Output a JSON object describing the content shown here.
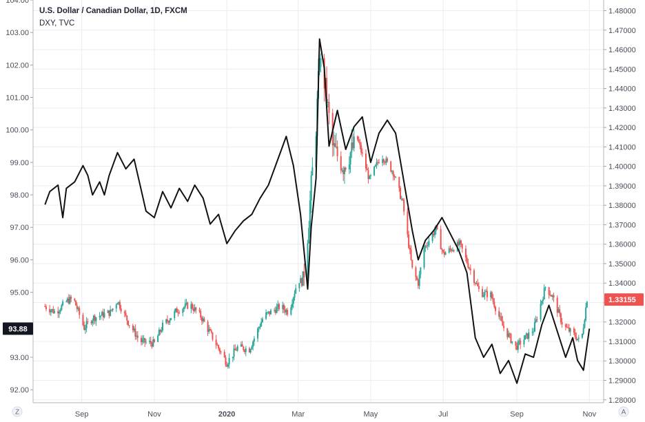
{
  "chart_data": {
    "type": "candlestick-with-line",
    "title": "U.S. Dollar / Canadian Dollar, 1D, FXCM",
    "overlay_label": "DXY, TVC",
    "x_ticks": [
      "Sep",
      "Nov",
      "2020",
      "Mar",
      "May",
      "Jul",
      "Sep",
      "Nov"
    ],
    "left_axis": {
      "series": "DXY",
      "range": [
        91.6,
        104.0
      ],
      "ticks": [
        "104.00",
        "103.00",
        "102.00",
        "101.00",
        "100.00",
        "99.00",
        "98.00",
        "97.00",
        "96.00",
        "95.00",
        "94.00",
        "93.00",
        "92.00"
      ],
      "last_value_label": "93.88"
    },
    "right_axis": {
      "series": "USDCAD",
      "range": [
        1.2785,
        1.4855
      ],
      "ticks": [
        "1.48000",
        "1.47000",
        "1.46000",
        "1.45000",
        "1.44000",
        "1.43000",
        "1.42000",
        "1.41000",
        "1.40000",
        "1.39000",
        "1.38000",
        "1.37000",
        "1.36000",
        "1.35000",
        "1.34000",
        "1.33000",
        "1.32000",
        "1.31000",
        "1.30000",
        "1.29000",
        "1.28000"
      ],
      "last_value_label": "1.33155"
    },
    "grid": true,
    "colors": {
      "up": "#26a69a",
      "down": "#ef5350",
      "line": "#111111",
      "grid": "#e9ecf1",
      "last_badge_left": "#131722",
      "last_badge_right": "#ef5350"
    },
    "usdcad_path": [
      {
        "date": "2019-08-01",
        "value": 1.328
      },
      {
        "date": "2019-08-10",
        "value": 1.325
      },
      {
        "date": "2019-08-20",
        "value": 1.331
      },
      {
        "date": "2019-08-25",
        "value": 1.332
      },
      {
        "date": "2019-09-03",
        "value": 1.317
      },
      {
        "date": "2019-09-10",
        "value": 1.322
      },
      {
        "date": "2019-09-25",
        "value": 1.325
      },
      {
        "date": "2019-10-01",
        "value": 1.331
      },
      {
        "date": "2019-10-10",
        "value": 1.32
      },
      {
        "date": "2019-10-20",
        "value": 1.31
      },
      {
        "date": "2019-11-01",
        "value": 1.309
      },
      {
        "date": "2019-11-08",
        "value": 1.318
      },
      {
        "date": "2019-11-20",
        "value": 1.326
      },
      {
        "date": "2019-12-01",
        "value": 1.329
      },
      {
        "date": "2019-12-10",
        "value": 1.323
      },
      {
        "date": "2019-12-20",
        "value": 1.312
      },
      {
        "date": "2020-01-01",
        "value": 1.299
      },
      {
        "date": "2020-01-10",
        "value": 1.307
      },
      {
        "date": "2020-01-20",
        "value": 1.306
      },
      {
        "date": "2020-02-01",
        "value": 1.323
      },
      {
        "date": "2020-02-15",
        "value": 1.328
      },
      {
        "date": "2020-02-22",
        "value": 1.325
      },
      {
        "date": "2020-03-01",
        "value": 1.342
      },
      {
        "date": "2020-03-05",
        "value": 1.34
      },
      {
        "date": "2020-03-09",
        "value": 1.365
      },
      {
        "date": "2020-03-12",
        "value": 1.39
      },
      {
        "date": "2020-03-16",
        "value": 1.42
      },
      {
        "date": "2020-03-19",
        "value": 1.455
      },
      {
        "date": "2020-03-24",
        "value": 1.44
      },
      {
        "date": "2020-03-30",
        "value": 1.41
      },
      {
        "date": "2020-04-08",
        "value": 1.4
      },
      {
        "date": "2020-04-20",
        "value": 1.414
      },
      {
        "date": "2020-04-30",
        "value": 1.393
      },
      {
        "date": "2020-05-10",
        "value": 1.406
      },
      {
        "date": "2020-05-20",
        "value": 1.397
      },
      {
        "date": "2020-05-28",
        "value": 1.381
      },
      {
        "date": "2020-06-05",
        "value": 1.347
      },
      {
        "date": "2020-06-10",
        "value": 1.34
      },
      {
        "date": "2020-06-15",
        "value": 1.358
      },
      {
        "date": "2020-06-25",
        "value": 1.368
      },
      {
        "date": "2020-07-01",
        "value": 1.355
      },
      {
        "date": "2020-07-15",
        "value": 1.36
      },
      {
        "date": "2020-07-25",
        "value": 1.345
      },
      {
        "date": "2020-08-01",
        "value": 1.335
      },
      {
        "date": "2020-08-10",
        "value": 1.334
      },
      {
        "date": "2020-08-20",
        "value": 1.318
      },
      {
        "date": "2020-08-31",
        "value": 1.307
      },
      {
        "date": "2020-09-05",
        "value": 1.31
      },
      {
        "date": "2020-09-15",
        "value": 1.316
      },
      {
        "date": "2020-09-25",
        "value": 1.338
      },
      {
        "date": "2020-10-01",
        "value": 1.333
      },
      {
        "date": "2020-10-10",
        "value": 1.318
      },
      {
        "date": "2020-10-20",
        "value": 1.313
      },
      {
        "date": "2020-10-25",
        "value": 1.309
      },
      {
        "date": "2020-10-30",
        "value": 1.332
      },
      {
        "date": "2020-11-01",
        "value": 1.3315
      }
    ],
    "dxy_line": [
      {
        "date": "2019-08-01",
        "value": 97.7
      },
      {
        "date": "2019-08-05",
        "value": 98.1
      },
      {
        "date": "2019-08-12",
        "value": 98.3
      },
      {
        "date": "2019-08-16",
        "value": 97.3
      },
      {
        "date": "2019-08-19",
        "value": 98.2
      },
      {
        "date": "2019-08-26",
        "value": 98.4
      },
      {
        "date": "2019-09-02",
        "value": 98.9
      },
      {
        "date": "2019-09-06",
        "value": 98.6
      },
      {
        "date": "2019-09-10",
        "value": 98.0
      },
      {
        "date": "2019-09-16",
        "value": 98.4
      },
      {
        "date": "2019-09-20",
        "value": 98.0
      },
      {
        "date": "2019-09-24",
        "value": 98.6
      },
      {
        "date": "2019-10-01",
        "value": 99.3
      },
      {
        "date": "2019-10-08",
        "value": 98.8
      },
      {
        "date": "2019-10-15",
        "value": 99.1
      },
      {
        "date": "2019-10-20",
        "value": 98.3
      },
      {
        "date": "2019-10-25",
        "value": 97.5
      },
      {
        "date": "2019-11-01",
        "value": 97.3
      },
      {
        "date": "2019-11-08",
        "value": 98.1
      },
      {
        "date": "2019-11-15",
        "value": 97.6
      },
      {
        "date": "2019-11-22",
        "value": 98.2
      },
      {
        "date": "2019-11-29",
        "value": 97.8
      },
      {
        "date": "2019-12-05",
        "value": 98.3
      },
      {
        "date": "2019-12-12",
        "value": 97.9
      },
      {
        "date": "2019-12-18",
        "value": 97.1
      },
      {
        "date": "2019-12-25",
        "value": 97.4
      },
      {
        "date": "2020-01-01",
        "value": 96.5
      },
      {
        "date": "2020-01-08",
        "value": 96.9
      },
      {
        "date": "2020-01-15",
        "value": 97.2
      },
      {
        "date": "2020-01-22",
        "value": 97.4
      },
      {
        "date": "2020-01-29",
        "value": 97.9
      },
      {
        "date": "2020-02-05",
        "value": 98.3
      },
      {
        "date": "2020-02-12",
        "value": 99.0
      },
      {
        "date": "2020-02-20",
        "value": 99.8
      },
      {
        "date": "2020-02-26",
        "value": 98.9
      },
      {
        "date": "2020-03-03",
        "value": 97.4
      },
      {
        "date": "2020-03-09",
        "value": 95.1
      },
      {
        "date": "2020-03-12",
        "value": 97.0
      },
      {
        "date": "2020-03-16",
        "value": 98.5
      },
      {
        "date": "2020-03-19",
        "value": 102.8
      },
      {
        "date": "2020-03-23",
        "value": 101.9
      },
      {
        "date": "2020-03-27",
        "value": 99.5
      },
      {
        "date": "2020-04-03",
        "value": 100.6
      },
      {
        "date": "2020-04-10",
        "value": 99.4
      },
      {
        "date": "2020-04-17",
        "value": 100.1
      },
      {
        "date": "2020-04-24",
        "value": 100.4
      },
      {
        "date": "2020-05-01",
        "value": 99.0
      },
      {
        "date": "2020-05-08",
        "value": 99.9
      },
      {
        "date": "2020-05-15",
        "value": 100.3
      },
      {
        "date": "2020-05-22",
        "value": 99.9
      },
      {
        "date": "2020-05-29",
        "value": 98.4
      },
      {
        "date": "2020-06-05",
        "value": 96.9
      },
      {
        "date": "2020-06-10",
        "value": 96.0
      },
      {
        "date": "2020-06-16",
        "value": 96.6
      },
      {
        "date": "2020-06-23",
        "value": 96.9
      },
      {
        "date": "2020-06-30",
        "value": 97.3
      },
      {
        "date": "2020-07-07",
        "value": 96.8
      },
      {
        "date": "2020-07-14",
        "value": 96.3
      },
      {
        "date": "2020-07-21",
        "value": 95.6
      },
      {
        "date": "2020-07-28",
        "value": 93.6
      },
      {
        "date": "2020-08-04",
        "value": 93.0
      },
      {
        "date": "2020-08-11",
        "value": 93.4
      },
      {
        "date": "2020-08-18",
        "value": 92.5
      },
      {
        "date": "2020-08-25",
        "value": 92.9
      },
      {
        "date": "2020-09-01",
        "value": 92.2
      },
      {
        "date": "2020-09-08",
        "value": 93.1
      },
      {
        "date": "2020-09-15",
        "value": 93.0
      },
      {
        "date": "2020-09-22",
        "value": 94.0
      },
      {
        "date": "2020-09-28",
        "value": 94.6
      },
      {
        "date": "2020-10-05",
        "value": 93.8
      },
      {
        "date": "2020-10-12",
        "value": 93.0
      },
      {
        "date": "2020-10-18",
        "value": 93.6
      },
      {
        "date": "2020-10-22",
        "value": 92.9
      },
      {
        "date": "2020-10-27",
        "value": 92.6
      },
      {
        "date": "2020-11-01",
        "value": 93.88
      }
    ]
  },
  "controls": {
    "left_corner": "Z",
    "right_corner": "A"
  }
}
